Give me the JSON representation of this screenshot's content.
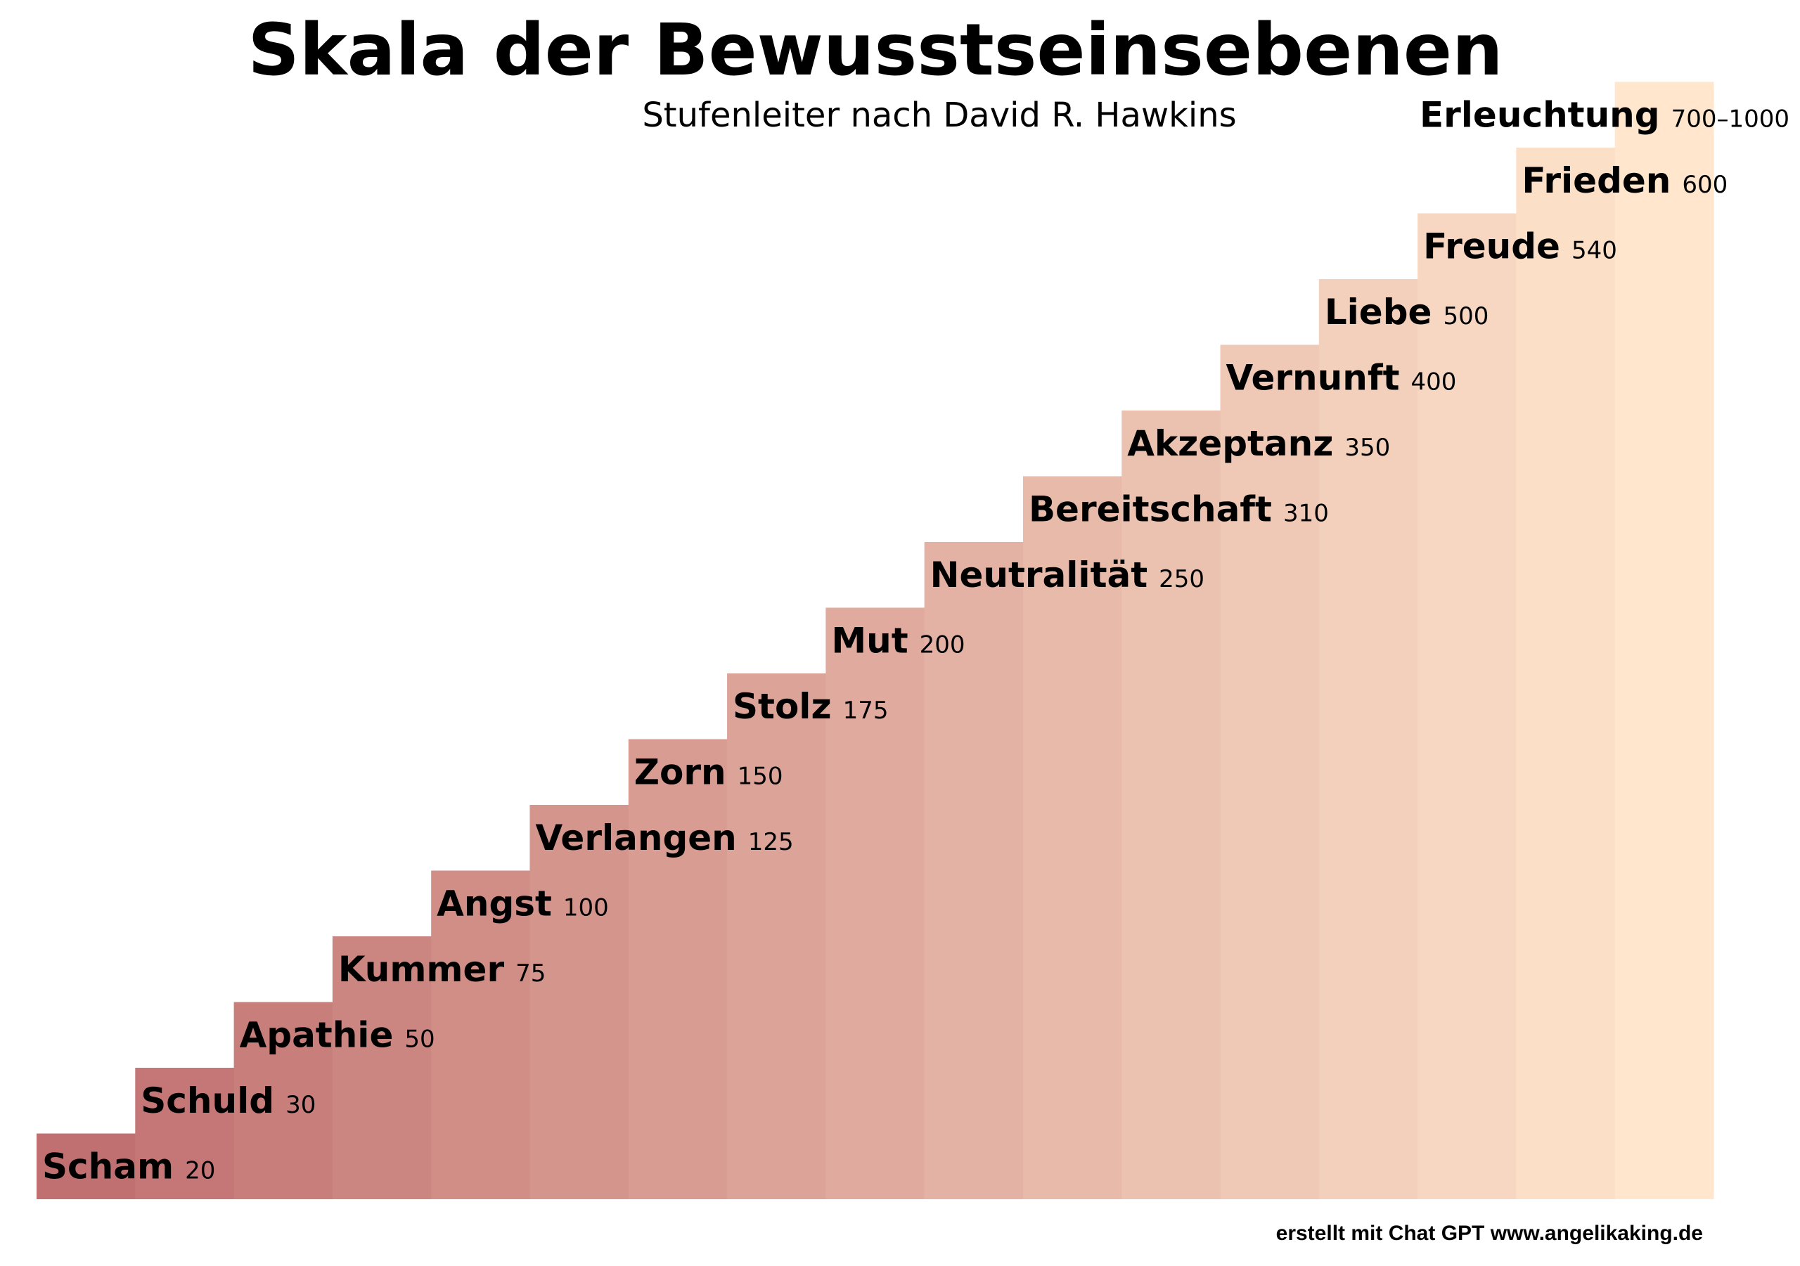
{
  "chart_data": {
    "type": "bar",
    "title": "Skala der Bewusstseinsebenen",
    "subtitle": "Stufenleiter nach David R. Hawkins",
    "categories": [
      "Scham",
      "Schuld",
      "Apathie",
      "Kummer",
      "Angst",
      "Verlangen",
      "Zorn",
      "Stolz",
      "Mut",
      "Neutralität",
      "Bereitschaft",
      "Akzeptanz",
      "Vernunft",
      "Liebe",
      "Freude",
      "Frieden",
      "Erleuchtung"
    ],
    "values": [
      "20",
      "30",
      "50",
      "75",
      "100",
      "125",
      "150",
      "175",
      "200",
      "250",
      "310",
      "350",
      "400",
      "500",
      "540",
      "600",
      "700–1000"
    ],
    "xlabel": "",
    "ylabel": "",
    "grid": false,
    "axes_visible": false,
    "bar_heights": "equal steps by rank",
    "color_start": "#c07070",
    "color_end": "#ffe6cc"
  },
  "footer": "erstellt mit Chat GPT  www.angelikaking.de"
}
